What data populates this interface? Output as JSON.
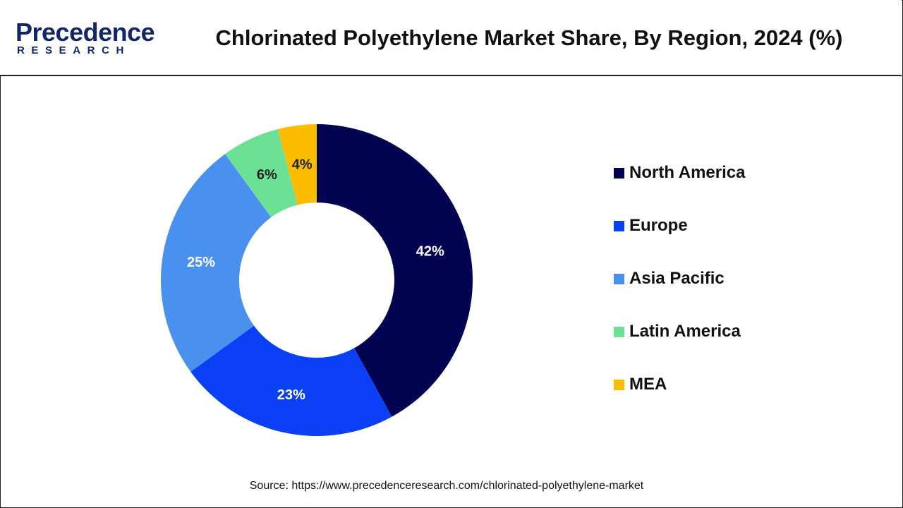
{
  "brand": {
    "logo_main": "Precedence",
    "logo_sub": "RESEARCH"
  },
  "chart_data": {
    "type": "pie",
    "variant": "donut",
    "title": "Chlorinated Polyethylene Market Share, By Region, 2024 (%)",
    "categories": [
      "North America",
      "Europe",
      "Asia Pacific",
      "Latin America",
      "MEA"
    ],
    "values": [
      42,
      23,
      25,
      6,
      4
    ],
    "value_labels": [
      "42%",
      "23%",
      "25%",
      "6%",
      "4%"
    ],
    "colors": [
      "#020452",
      "#0a3ff5",
      "#4a91ef",
      "#6ce195",
      "#fcbc00"
    ],
    "label_colors": [
      "#ffffff",
      "#ffffff",
      "#ffffff",
      "#222222",
      "#222222"
    ],
    "start": "top",
    "direction": "clockwise",
    "legend_position": "right"
  },
  "source": {
    "text": "Source: https://www.precedenceresearch.com/chlorinated-polyethylene-market"
  }
}
